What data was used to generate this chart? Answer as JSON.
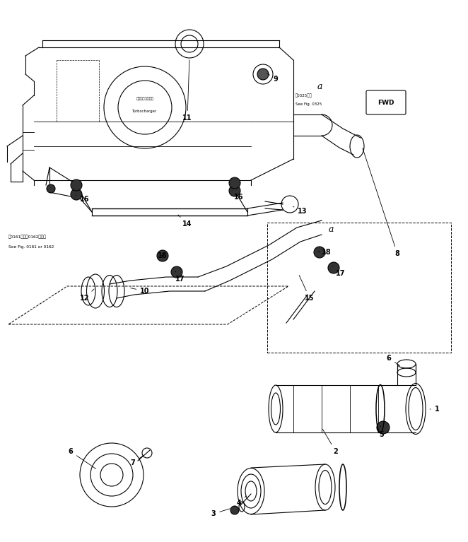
{
  "bg_color": "#ffffff",
  "line_color": "#000000",
  "fig_width": 6.62,
  "fig_height": 7.67,
  "dpi": 100,
  "note1_jp": "図0161または0162図参照",
  "note1_en": "See Fig. 0161 or 0162",
  "note2_jp": "図0325参照",
  "note2_en": "See Fig. 0325",
  "turbocharger_label_jp": "ターボチャージャ",
  "turbocharger_label_en": "Turbocharger"
}
